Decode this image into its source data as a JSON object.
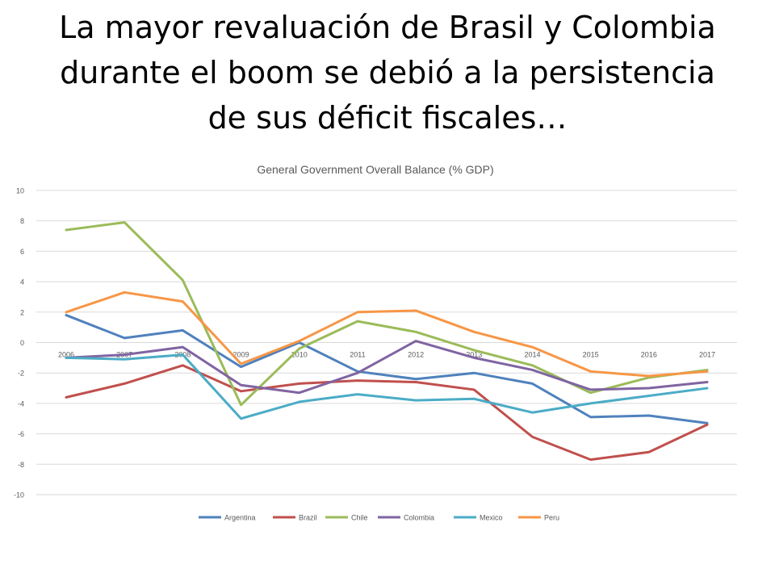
{
  "slide": {
    "title_lines": [
      "La mayor revaluación de Brasil y Colombia",
      "durante el boom se debió a la persistencia",
      "de sus déficit fiscales…"
    ]
  },
  "chart_data": {
    "type": "line",
    "title": "General Government Overall Balance (% GDP)",
    "xlabel": "",
    "ylabel": "",
    "categories": [
      "2006",
      "2007",
      "2008",
      "2009",
      "2010",
      "2011",
      "2012",
      "2013",
      "2014",
      "2015",
      "2016",
      "2017"
    ],
    "yticks": [
      "10",
      "8",
      "6",
      "4",
      "2",
      "0",
      "-2",
      "-4",
      "-6",
      "-8",
      "-10"
    ],
    "ylim": [
      -10,
      10
    ],
    "grid": true,
    "legend_position": "bottom",
    "series": [
      {
        "name": "Argentina",
        "color": "#4F81BD",
        "values": [
          1.8,
          0.3,
          0.8,
          -1.6,
          0.0,
          -1.9,
          -2.4,
          -2.0,
          -2.7,
          -4.9,
          -4.8,
          -5.3
        ]
      },
      {
        "name": "Brazil",
        "color": "#C0504D",
        "values": [
          -3.6,
          -2.7,
          -1.5,
          -3.2,
          -2.7,
          -2.5,
          -2.6,
          -3.1,
          -6.2,
          -7.7,
          -7.2,
          -5.4
        ]
      },
      {
        "name": "Chile",
        "color": "#9BBB59",
        "values": [
          7.4,
          7.9,
          4.1,
          -4.1,
          -0.4,
          1.4,
          0.7,
          -0.5,
          -1.5,
          -3.3,
          -2.3,
          -1.8
        ]
      },
      {
        "name": "Colombia",
        "color": "#8064A2",
        "values": [
          -1.0,
          -0.8,
          -0.3,
          -2.8,
          -3.3,
          -2.0,
          0.1,
          -1.0,
          -1.8,
          -3.1,
          -3.0,
          -2.6
        ]
      },
      {
        "name": "Mexico",
        "color": "#4BACC6",
        "values": [
          -1.0,
          -1.1,
          -0.8,
          -5.0,
          -3.9,
          -3.4,
          -3.8,
          -3.7,
          -4.6,
          -4.0,
          -3.5,
          -3.0
        ]
      },
      {
        "name": "Peru",
        "color": "#F79646",
        "values": [
          2.0,
          3.3,
          2.7,
          -1.4,
          0.1,
          2.0,
          2.1,
          0.7,
          -0.3,
          -1.9,
          -2.2,
          -1.9
        ]
      }
    ]
  }
}
